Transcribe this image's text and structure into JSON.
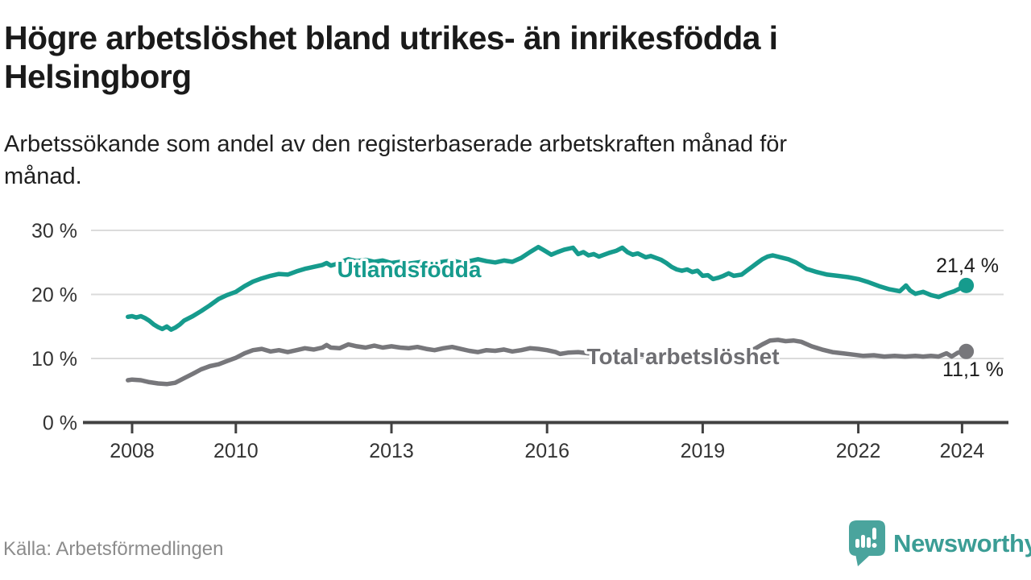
{
  "chart_data": {
    "type": "line",
    "title": "Högre arbetslöshet bland utrikes- än inrikesfödda i Helsingborg",
    "title_lines": [
      "Högre arbetslöshet bland utrikes- än inrikesfödda i",
      "Helsingborg"
    ],
    "subtitle_lines": [
      "Arbetssökande som andel av den registerbaserade arbetskraften månad för",
      "månad."
    ],
    "unit": "%",
    "grid": true,
    "legend_position": "inline-labels-on-lines",
    "x_axis": {
      "ticks": [
        2008,
        2010,
        2013,
        2016,
        2019,
        2022,
        2024
      ],
      "labels": [
        "2008",
        "2010",
        "2013",
        "2016",
        "2019",
        "2022",
        "2024"
      ],
      "range": [
        2007.0,
        2024.9
      ]
    },
    "y_axis": {
      "ticks": [
        0,
        10,
        20,
        30
      ],
      "labels": [
        "0 %",
        "10 %",
        "20 %",
        "30 %"
      ],
      "range": [
        0,
        30
      ]
    },
    "series": [
      {
        "name": "Utlandsfödda",
        "color": "#169b8d",
        "label_color": "#169b8d",
        "end_value": 21.4,
        "end_label": "21,4 %",
        "points": [
          [
            2007.92,
            16.5
          ],
          [
            2008.0,
            16.6
          ],
          [
            2008.08,
            16.4
          ],
          [
            2008.17,
            16.6
          ],
          [
            2008.25,
            16.3
          ],
          [
            2008.33,
            15.9
          ],
          [
            2008.42,
            15.3
          ],
          [
            2008.5,
            14.9
          ],
          [
            2008.58,
            14.6
          ],
          [
            2008.67,
            15.0
          ],
          [
            2008.75,
            14.5
          ],
          [
            2008.83,
            14.8
          ],
          [
            2008.92,
            15.3
          ],
          [
            2009.0,
            15.9
          ],
          [
            2009.17,
            16.6
          ],
          [
            2009.33,
            17.4
          ],
          [
            2009.5,
            18.3
          ],
          [
            2009.67,
            19.3
          ],
          [
            2009.83,
            19.9
          ],
          [
            2010.0,
            20.4
          ],
          [
            2010.17,
            21.3
          ],
          [
            2010.33,
            22.0
          ],
          [
            2010.5,
            22.5
          ],
          [
            2010.67,
            22.9
          ],
          [
            2010.83,
            23.2
          ],
          [
            2011.0,
            23.1
          ],
          [
            2011.17,
            23.6
          ],
          [
            2011.33,
            24.0
          ],
          [
            2011.5,
            24.3
          ],
          [
            2011.67,
            24.6
          ],
          [
            2011.75,
            24.9
          ],
          [
            2011.83,
            24.5
          ],
          [
            2011.92,
            24.7
          ],
          [
            2012.0,
            25.0
          ],
          [
            2012.17,
            25.5
          ],
          [
            2012.33,
            25.2
          ],
          [
            2012.5,
            25.4
          ],
          [
            2012.67,
            25.1
          ],
          [
            2012.83,
            25.3
          ],
          [
            2013.0,
            24.9
          ],
          [
            2013.17,
            25.1
          ],
          [
            2013.33,
            24.8
          ],
          [
            2013.5,
            25.0
          ],
          [
            2013.67,
            25.2
          ],
          [
            2013.83,
            24.9
          ],
          [
            2014.0,
            25.1
          ],
          [
            2014.17,
            25.3
          ],
          [
            2014.33,
            25.0
          ],
          [
            2014.5,
            25.2
          ],
          [
            2014.67,
            25.5
          ],
          [
            2014.83,
            25.2
          ],
          [
            2015.0,
            25.0
          ],
          [
            2015.17,
            25.3
          ],
          [
            2015.33,
            25.1
          ],
          [
            2015.5,
            25.7
          ],
          [
            2015.67,
            26.6
          ],
          [
            2015.83,
            27.4
          ],
          [
            2015.92,
            27.0
          ],
          [
            2016.0,
            26.6
          ],
          [
            2016.08,
            26.2
          ],
          [
            2016.2,
            26.6
          ],
          [
            2016.33,
            27.0
          ],
          [
            2016.5,
            27.3
          ],
          [
            2016.6,
            26.3
          ],
          [
            2016.7,
            26.6
          ],
          [
            2016.8,
            26.1
          ],
          [
            2016.9,
            26.3
          ],
          [
            2017.0,
            25.9
          ],
          [
            2017.1,
            26.2
          ],
          [
            2017.2,
            26.5
          ],
          [
            2017.33,
            26.8
          ],
          [
            2017.45,
            27.3
          ],
          [
            2017.55,
            26.6
          ],
          [
            2017.65,
            26.2
          ],
          [
            2017.75,
            26.4
          ],
          [
            2017.9,
            25.8
          ],
          [
            2018.0,
            26.0
          ],
          [
            2018.1,
            25.7
          ],
          [
            2018.2,
            25.4
          ],
          [
            2018.3,
            24.9
          ],
          [
            2018.4,
            24.3
          ],
          [
            2018.5,
            23.9
          ],
          [
            2018.6,
            23.7
          ],
          [
            2018.7,
            23.9
          ],
          [
            2018.8,
            23.5
          ],
          [
            2018.9,
            23.7
          ],
          [
            2019.0,
            22.9
          ],
          [
            2019.1,
            23.0
          ],
          [
            2019.2,
            22.4
          ],
          [
            2019.3,
            22.6
          ],
          [
            2019.4,
            22.9
          ],
          [
            2019.5,
            23.3
          ],
          [
            2019.6,
            22.9
          ],
          [
            2019.75,
            23.1
          ],
          [
            2019.85,
            23.7
          ],
          [
            2019.95,
            24.3
          ],
          [
            2020.05,
            24.9
          ],
          [
            2020.15,
            25.5
          ],
          [
            2020.25,
            25.9
          ],
          [
            2020.35,
            26.1
          ],
          [
            2020.5,
            25.8
          ],
          [
            2020.65,
            25.5
          ],
          [
            2020.8,
            25.0
          ],
          [
            2020.9,
            24.5
          ],
          [
            2021.0,
            24.0
          ],
          [
            2021.2,
            23.5
          ],
          [
            2021.4,
            23.1
          ],
          [
            2021.6,
            22.9
          ],
          [
            2021.8,
            22.7
          ],
          [
            2022.0,
            22.4
          ],
          [
            2022.2,
            21.9
          ],
          [
            2022.4,
            21.3
          ],
          [
            2022.6,
            20.8
          ],
          [
            2022.8,
            20.5
          ],
          [
            2022.92,
            21.4
          ],
          [
            2023.0,
            20.6
          ],
          [
            2023.1,
            20.1
          ],
          [
            2023.25,
            20.4
          ],
          [
            2023.4,
            19.9
          ],
          [
            2023.55,
            19.6
          ],
          [
            2023.7,
            20.1
          ],
          [
            2023.85,
            20.5
          ],
          [
            2023.95,
            20.9
          ],
          [
            2024.08,
            21.4
          ]
        ]
      },
      {
        "name": "Total arbetslöshet",
        "color": "#77777b",
        "label_color": "#6e6e72",
        "end_value": 11.1,
        "end_label": "11,1 %",
        "points": [
          [
            2007.92,
            6.6
          ],
          [
            2008.0,
            6.7
          ],
          [
            2008.17,
            6.6
          ],
          [
            2008.33,
            6.3
          ],
          [
            2008.5,
            6.1
          ],
          [
            2008.67,
            6.0
          ],
          [
            2008.83,
            6.2
          ],
          [
            2009.0,
            6.9
          ],
          [
            2009.17,
            7.6
          ],
          [
            2009.33,
            8.3
          ],
          [
            2009.5,
            8.8
          ],
          [
            2009.67,
            9.1
          ],
          [
            2009.83,
            9.6
          ],
          [
            2010.0,
            10.1
          ],
          [
            2010.17,
            10.8
          ],
          [
            2010.33,
            11.3
          ],
          [
            2010.5,
            11.5
          ],
          [
            2010.67,
            11.1
          ],
          [
            2010.83,
            11.3
          ],
          [
            2011.0,
            11.0
          ],
          [
            2011.17,
            11.3
          ],
          [
            2011.33,
            11.6
          ],
          [
            2011.5,
            11.4
          ],
          [
            2011.67,
            11.7
          ],
          [
            2011.75,
            12.1
          ],
          [
            2011.83,
            11.7
          ],
          [
            2012.0,
            11.6
          ],
          [
            2012.17,
            12.2
          ],
          [
            2012.33,
            11.9
          ],
          [
            2012.5,
            11.7
          ],
          [
            2012.67,
            12.0
          ],
          [
            2012.83,
            11.7
          ],
          [
            2013.0,
            11.9
          ],
          [
            2013.17,
            11.7
          ],
          [
            2013.33,
            11.6
          ],
          [
            2013.5,
            11.8
          ],
          [
            2013.67,
            11.5
          ],
          [
            2013.83,
            11.3
          ],
          [
            2014.0,
            11.6
          ],
          [
            2014.17,
            11.8
          ],
          [
            2014.33,
            11.5
          ],
          [
            2014.5,
            11.2
          ],
          [
            2014.67,
            11.0
          ],
          [
            2014.83,
            11.3
          ],
          [
            2015.0,
            11.2
          ],
          [
            2015.17,
            11.4
          ],
          [
            2015.33,
            11.1
          ],
          [
            2015.5,
            11.3
          ],
          [
            2015.67,
            11.6
          ],
          [
            2015.83,
            11.5
          ],
          [
            2016.0,
            11.3
          ],
          [
            2016.17,
            11.0
          ],
          [
            2016.25,
            10.7
          ],
          [
            2016.4,
            10.9
          ],
          [
            2016.6,
            11.0
          ],
          [
            2016.8,
            10.8
          ],
          [
            2017.0,
            11.0
          ],
          [
            2017.2,
            10.8
          ],
          [
            2017.4,
            10.7
          ],
          [
            2017.6,
            10.9
          ],
          [
            2017.8,
            10.6
          ],
          [
            2018.0,
            10.4
          ],
          [
            2018.2,
            10.6
          ],
          [
            2018.4,
            10.3
          ],
          [
            2018.6,
            10.5
          ],
          [
            2018.8,
            10.2
          ],
          [
            2019.0,
            10.3
          ],
          [
            2019.2,
            10.4
          ],
          [
            2019.4,
            10.5
          ],
          [
            2019.6,
            10.6
          ],
          [
            2019.8,
            10.9
          ],
          [
            2020.0,
            11.5
          ],
          [
            2020.15,
            12.2
          ],
          [
            2020.3,
            12.8
          ],
          [
            2020.45,
            12.9
          ],
          [
            2020.6,
            12.7
          ],
          [
            2020.75,
            12.8
          ],
          [
            2020.9,
            12.6
          ],
          [
            2021.1,
            11.9
          ],
          [
            2021.3,
            11.4
          ],
          [
            2021.5,
            11.0
          ],
          [
            2021.7,
            10.8
          ],
          [
            2021.9,
            10.6
          ],
          [
            2022.1,
            10.4
          ],
          [
            2022.3,
            10.5
          ],
          [
            2022.5,
            10.3
          ],
          [
            2022.7,
            10.4
          ],
          [
            2022.9,
            10.3
          ],
          [
            2023.1,
            10.4
          ],
          [
            2023.25,
            10.3
          ],
          [
            2023.4,
            10.4
          ],
          [
            2023.55,
            10.3
          ],
          [
            2023.7,
            10.8
          ],
          [
            2023.8,
            10.3
          ],
          [
            2023.92,
            10.9
          ],
          [
            2024.08,
            11.1
          ]
        ]
      }
    ]
  },
  "footer": {
    "source": "Källa: Arbetsförmedlingen",
    "brand": "Newsworthy"
  },
  "colors": {
    "accent_teal": "#169b8d",
    "line_gray": "#77777b",
    "logo_teal": "#4aa49d",
    "wordmark_teal": "#3b9d95",
    "gridline": "#dbdbdb",
    "axis": "#414141"
  }
}
